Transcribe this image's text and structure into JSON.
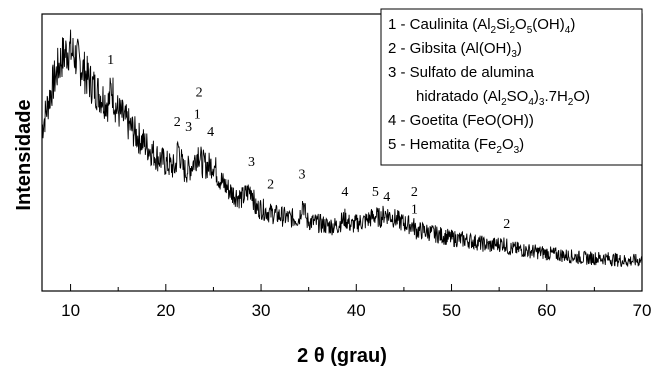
{
  "chart_data": {
    "type": "line",
    "xlabel": "2 θ (grau)",
    "ylabel": "Intensidade",
    "xlim": [
      7,
      70
    ],
    "xticks": [
      10,
      20,
      30,
      40,
      50,
      60,
      70
    ],
    "yticks_shown": false,
    "series": [
      {
        "points": [
          [
            7,
            0.62
          ],
          [
            8,
            0.78
          ],
          [
            9,
            0.9
          ],
          [
            9.8,
            0.94
          ],
          [
            10.5,
            0.91
          ],
          [
            11,
            0.88
          ],
          [
            12,
            0.81
          ],
          [
            13,
            0.76
          ],
          [
            14,
            0.72
          ],
          [
            14.3,
            0.79
          ],
          [
            14.8,
            0.7
          ],
          [
            15,
            0.69
          ],
          [
            16,
            0.64
          ],
          [
            17,
            0.59
          ],
          [
            18,
            0.55
          ],
          [
            19,
            0.51
          ],
          [
            20,
            0.48
          ],
          [
            21,
            0.46
          ],
          [
            21.3,
            0.55
          ],
          [
            21.8,
            0.46
          ],
          [
            22,
            0.45
          ],
          [
            22.5,
            0.46
          ],
          [
            23,
            0.49
          ],
          [
            23.4,
            0.53
          ],
          [
            23.8,
            0.48
          ],
          [
            24.5,
            0.47
          ],
          [
            25,
            0.48
          ],
          [
            25.5,
            0.43
          ],
          [
            26,
            0.4
          ],
          [
            27,
            0.36
          ],
          [
            28,
            0.34
          ],
          [
            29,
            0.38
          ],
          [
            29.4,
            0.3
          ],
          [
            30,
            0.3
          ],
          [
            31,
            0.28
          ],
          [
            32,
            0.27
          ],
          [
            33,
            0.26
          ],
          [
            34,
            0.26
          ],
          [
            34.4,
            0.33
          ],
          [
            34.8,
            0.25
          ],
          [
            36,
            0.24
          ],
          [
            37,
            0.23
          ],
          [
            38,
            0.23
          ],
          [
            38.8,
            0.26
          ],
          [
            39.5,
            0.23
          ],
          [
            40,
            0.24
          ],
          [
            41,
            0.25
          ],
          [
            42,
            0.27
          ],
          [
            42.5,
            0.26
          ],
          [
            43,
            0.28
          ],
          [
            44,
            0.26
          ],
          [
            45,
            0.24
          ],
          [
            46,
            0.23
          ],
          [
            46.3,
            0.21
          ],
          [
            47,
            0.21
          ],
          [
            48,
            0.2
          ],
          [
            50,
            0.18
          ],
          [
            52,
            0.17
          ],
          [
            54,
            0.15
          ],
          [
            55.5,
            0.16
          ],
          [
            56,
            0.14
          ],
          [
            58,
            0.13
          ],
          [
            60,
            0.12
          ],
          [
            62,
            0.11
          ],
          [
            64,
            0.1
          ],
          [
            66,
            0.1
          ],
          [
            68,
            0.09
          ],
          [
            70,
            0.09
          ]
        ],
        "color": "#000000"
      }
    ],
    "annotations": [
      {
        "x": 14.2,
        "y": 0.88,
        "text": "1"
      },
      {
        "x": 21.2,
        "y": 0.63,
        "text": "2"
      },
      {
        "x": 22.4,
        "y": 0.61,
        "text": "3"
      },
      {
        "x": 23.3,
        "y": 0.66,
        "text": "1"
      },
      {
        "x": 23.5,
        "y": 0.75,
        "text": "2"
      },
      {
        "x": 24.7,
        "y": 0.59,
        "text": "4"
      },
      {
        "x": 29.0,
        "y": 0.47,
        "text": "3"
      },
      {
        "x": 31.0,
        "y": 0.38,
        "text": "2"
      },
      {
        "x": 34.3,
        "y": 0.42,
        "text": "3"
      },
      {
        "x": 38.8,
        "y": 0.35,
        "text": "4"
      },
      {
        "x": 42.0,
        "y": 0.35,
        "text": "5"
      },
      {
        "x": 43.2,
        "y": 0.33,
        "text": "4"
      },
      {
        "x": 46.1,
        "y": 0.35,
        "text": "2"
      },
      {
        "x": 46.1,
        "y": 0.28,
        "text": "1"
      },
      {
        "x": 55.8,
        "y": 0.22,
        "text": "2"
      }
    ],
    "legend": {
      "placement": "top-right",
      "entries": [
        {
          "prefix": "1 - Caulinita  (Al",
          "s1": "2",
          "m1": "Si",
          "s2": "2",
          "m2": "O",
          "s3": "5",
          "m3": "(OH)",
          "s4": "4",
          "m4": ")"
        },
        {
          "prefix": "2 - Gibsita (Al(OH)",
          "s1": "3",
          "m1": ")"
        },
        {
          "prefix": "3 - Sulfato de alumina"
        },
        {
          "prefix": "hidratado (Al",
          "s1": "2",
          "m1": "SO",
          "s2": "4",
          "m2": ")",
          "s3": "3",
          "m3": ".7H",
          "s4": "2",
          "m4": "O)"
        },
        {
          "prefix": "4 - Goetita (FeO(OH))"
        },
        {
          "prefix": "5 - Hematita (Fe",
          "s1": "2",
          "m1": "O",
          "s2": "3",
          "m2": ")"
        }
      ]
    }
  }
}
